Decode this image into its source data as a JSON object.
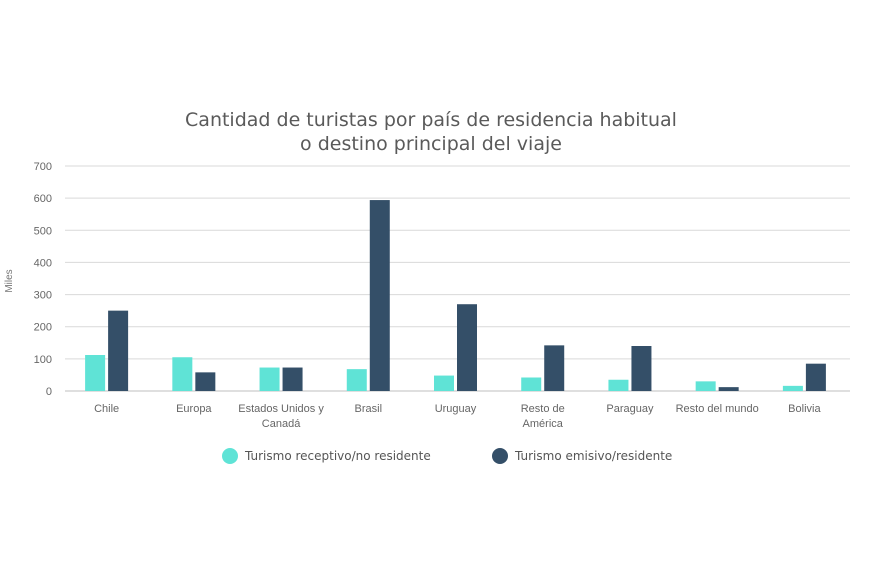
{
  "chart_data": {
    "type": "bar",
    "title": [
      "Cantidad de turistas por país de residencia habitual",
      "o destino principal del viaje"
    ],
    "ylabel": "Miles",
    "xlabel": "",
    "ylim": [
      0,
      700
    ],
    "yticks": [
      0,
      100,
      200,
      300,
      400,
      500,
      600,
      700
    ],
    "grid": true,
    "legend_position": "bottom",
    "categories": [
      [
        "Chile"
      ],
      [
        "Europa"
      ],
      [
        "Estados Unidos y",
        "Canadá"
      ],
      [
        "Brasil"
      ],
      [
        "Uruguay"
      ],
      [
        "Resto de",
        "América"
      ],
      [
        "Paraguay"
      ],
      [
        "Resto del mundo"
      ],
      [
        "Bolivia"
      ]
    ],
    "series": [
      {
        "name": "Turismo receptivo/no residente",
        "color": "#5fe3d6",
        "values": [
          112,
          105,
          73,
          68,
          48,
          42,
          35,
          30,
          16
        ]
      },
      {
        "name": "Turismo emisivo/residente",
        "color": "#344f68",
        "values": [
          250,
          58,
          73,
          594,
          270,
          142,
          140,
          12,
          85
        ]
      }
    ]
  }
}
